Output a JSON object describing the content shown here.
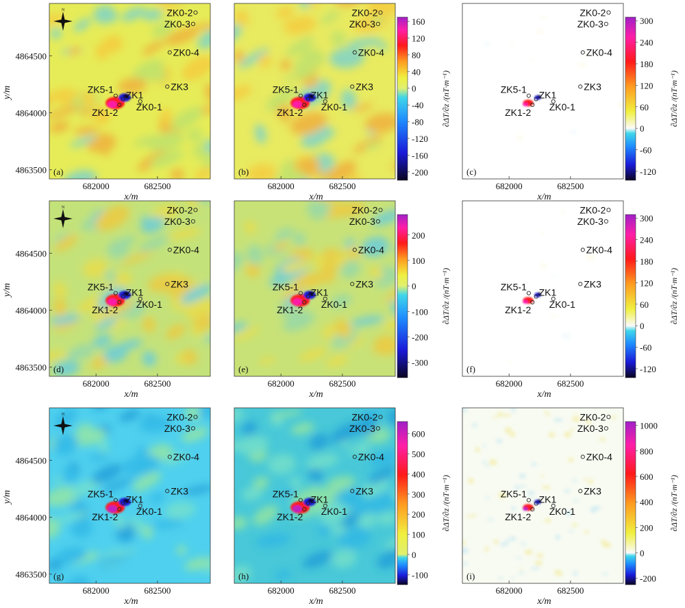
{
  "chart_data": {
    "type": "heatmap",
    "panel_labels": [
      "(a)",
      "(b)",
      "(c)",
      "(d)",
      "(e)",
      "(f)",
      "(g)",
      "(h)",
      "(i)"
    ],
    "xlabel": "x/m",
    "ylabel": "y/m",
    "x_ticks": [
      "682000",
      "682500"
    ],
    "y_ticks": [
      "4864500",
      "4864000",
      "4863500"
    ],
    "x_tick_values": [
      682000,
      682500
    ],
    "y_tick_values": [
      4864500,
      4864000,
      4863500
    ],
    "xlim": [
      681620,
      682930
    ],
    "ylim": [
      4863420,
      4864960
    ],
    "north_arrow_label": "N",
    "colorbar_title": "∂ΔT/∂z /(nT·m⁻¹)",
    "colorbars": [
      {
        "row": 0,
        "panel": "b",
        "ticks": [
          "160",
          "120",
          "80",
          "40",
          "0",
          "-40",
          "-80",
          "-120",
          "-160",
          "-200"
        ],
        "range": [
          -220,
          170
        ]
      },
      {
        "row": 0,
        "panel": "c",
        "ticks": [
          "300",
          "240",
          "180",
          "120",
          "60",
          "0",
          "-60",
          "-120"
        ],
        "range": [
          -145,
          310
        ]
      },
      {
        "row": 1,
        "panel": "e",
        "ticks": [
          "200",
          "100",
          "0",
          "-100",
          "-200",
          "-300"
        ],
        "range": [
          -360,
          280
        ]
      },
      {
        "row": 1,
        "panel": "f",
        "ticks": [
          "300",
          "240",
          "180",
          "120",
          "60",
          "0",
          "-60",
          "-120"
        ],
        "range": [
          -145,
          310
        ]
      },
      {
        "row": 2,
        "panel": "h",
        "ticks": [
          "600",
          "500",
          "400",
          "300",
          "200",
          "100",
          "0",
          "-100"
        ],
        "range": [
          -150,
          660
        ]
      },
      {
        "row": 2,
        "panel": "i",
        "ticks": [
          "1000",
          "800",
          "600",
          "400",
          "200",
          "0",
          "-200"
        ],
        "range": [
          -250,
          1030
        ]
      }
    ],
    "wells": [
      {
        "name": "ZK0-2",
        "x": 682810,
        "y": 4864880
      },
      {
        "name": "ZK0-3",
        "x": 682790,
        "y": 4864780
      },
      {
        "name": "ZK0-4",
        "x": 682600,
        "y": 4864530
      },
      {
        "name": "ZK3",
        "x": 682580,
        "y": 4864230
      },
      {
        "name": "ZK5-1",
        "x": 682160,
        "y": 4864150
      },
      {
        "name": "ZK1",
        "x": 682220,
        "y": 4864120
      },
      {
        "name": "ZK1-2",
        "x": 682190,
        "y": 4864070
      },
      {
        "name": "ZK0-1",
        "x": 682360,
        "y": 4864100
      }
    ],
    "colors": {
      "colormap": [
        "#0a0520",
        "#1a1ad8",
        "#1e8cff",
        "#3fd6ea",
        "#fafafa",
        "#f0f040",
        "#ff9a20",
        "#ff1a1a",
        "#ff1ea8",
        "#a020c8"
      ],
      "panel_backgrounds": {
        "a": "#e6ec58",
        "b": "#e8ea60",
        "c": "#ffffff",
        "d": "#c4e27a",
        "e": "#c8e278",
        "f": "#ffffff",
        "g": "#4fd0ee",
        "h": "#48c8d8",
        "i": "#f8fbf2"
      }
    },
    "anomaly_peak_values": {
      "a": {
        "positive": 160,
        "negative": -200
      },
      "b": {
        "positive": 160,
        "negative": -200
      },
      "c": {
        "positive": 300,
        "negative": -140
      },
      "d": {
        "positive": 200,
        "negative": -330
      },
      "e": {
        "positive": 200,
        "negative": -330
      },
      "f": {
        "positive": 300,
        "negative": -140
      },
      "g": {
        "positive": 600,
        "negative": -120
      },
      "h": {
        "positive": 600,
        "negative": -120
      },
      "i": {
        "positive": 1000,
        "negative": -220
      }
    }
  }
}
